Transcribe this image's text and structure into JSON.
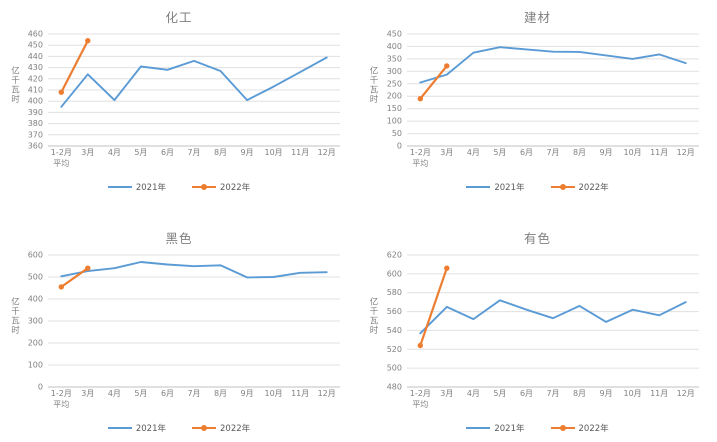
{
  "colors": {
    "series_2021": "#5B9BD5",
    "series_2022": "#ED7D31",
    "gridline": "#E0E0E0",
    "axis_line": "#C0C0C0",
    "tick_text": "#808080",
    "title_text": "#7F7F7F",
    "legend_text": "#595959"
  },
  "chart_data": [
    {
      "type": "line",
      "title": "化工",
      "ylabel": "亿千瓦时",
      "xlabel": "",
      "categories": [
        "1-2月\n平均",
        "3月",
        "4月",
        "5月",
        "6月",
        "7月",
        "8月",
        "9月",
        "10月",
        "11月",
        "12月"
      ],
      "series": [
        {
          "name": "2021年",
          "color": "#5B9BD5",
          "marker": false,
          "values": [
            395,
            424,
            401,
            431,
            428,
            436,
            427,
            401,
            413,
            426,
            439
          ]
        },
        {
          "name": "2022年",
          "color": "#ED7D31",
          "marker": true,
          "values": [
            408,
            454,
            null,
            null,
            null,
            null,
            null,
            null,
            null,
            null,
            null
          ]
        }
      ],
      "ylim": [
        360,
        460
      ],
      "ytick_step": 10,
      "grid": true,
      "legend_position": "bottom"
    },
    {
      "type": "line",
      "title": "建材",
      "ylabel": "亿千瓦时",
      "xlabel": "",
      "categories": [
        "1-2月\n平均",
        "3月",
        "4月",
        "5月",
        "6月",
        "7月",
        "8月",
        "9月",
        "10月",
        "11月",
        "12月"
      ],
      "series": [
        {
          "name": "2021年",
          "color": "#5B9BD5",
          "marker": false,
          "values": [
            255,
            287,
            375,
            397,
            388,
            379,
            378,
            364,
            350,
            368,
            333
          ]
        },
        {
          "name": "2022年",
          "color": "#ED7D31",
          "marker": true,
          "values": [
            190,
            322,
            null,
            null,
            null,
            null,
            null,
            null,
            null,
            null,
            null
          ]
        }
      ],
      "ylim": [
        0,
        450
      ],
      "ytick_step": 50,
      "grid": true,
      "legend_position": "bottom"
    },
    {
      "type": "line",
      "title": "黑色",
      "ylabel": "亿千瓦时",
      "xlabel": "",
      "categories": [
        "1-2月\n平均",
        "3月",
        "4月",
        "5月",
        "6月",
        "7月",
        "8月",
        "9月",
        "10月",
        "11月",
        "12月"
      ],
      "series": [
        {
          "name": "2021年",
          "color": "#5B9BD5",
          "marker": false,
          "values": [
            503,
            527,
            540,
            568,
            557,
            549,
            553,
            498,
            500,
            519,
            522
          ]
        },
        {
          "name": "2022年",
          "color": "#ED7D31",
          "marker": true,
          "values": [
            455,
            540,
            null,
            null,
            null,
            null,
            null,
            null,
            null,
            null,
            null
          ]
        }
      ],
      "ylim": [
        0,
        600
      ],
      "ytick_step": 100,
      "grid": true,
      "legend_position": "bottom"
    },
    {
      "type": "line",
      "title": "有色",
      "ylabel": "亿千瓦时",
      "xlabel": "",
      "categories": [
        "1-2月\n平均",
        "3月",
        "4月",
        "5月",
        "6月",
        "7月",
        "8月",
        "9月",
        "10月",
        "11月",
        "12月"
      ],
      "series": [
        {
          "name": "2021年",
          "color": "#5B9BD5",
          "marker": false,
          "values": [
            537,
            565,
            552,
            572,
            562,
            553,
            566,
            549,
            562,
            556,
            570
          ]
        },
        {
          "name": "2022年",
          "color": "#ED7D31",
          "marker": true,
          "values": [
            524,
            606,
            null,
            null,
            null,
            null,
            null,
            null,
            null,
            null,
            null
          ]
        }
      ],
      "ylim": [
        480,
        620
      ],
      "ytick_step": 20,
      "grid": true,
      "legend_position": "bottom"
    }
  ]
}
